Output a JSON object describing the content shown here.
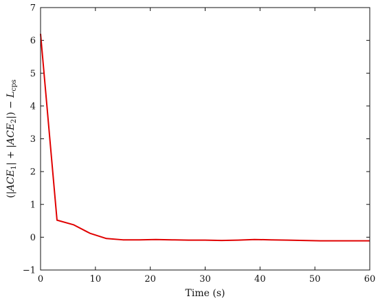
{
  "chart_data": {
    "type": "line",
    "xlabel": "Time (s)",
    "ylabel": "(|ACE1| + |ACE2|) − Lcps",
    "xlim": [
      0,
      60
    ],
    "ylim": [
      -1,
      7
    ],
    "xticks": [
      0,
      10,
      20,
      30,
      40,
      50,
      60
    ],
    "yticks": [
      -1,
      0,
      1,
      2,
      3,
      4,
      5,
      6,
      7
    ],
    "grid": false,
    "series": [
      {
        "color": "#e00000",
        "x": [
          0,
          3,
          6,
          9,
          12,
          15,
          18,
          21,
          24,
          27,
          30,
          33,
          36,
          39,
          42,
          45,
          48,
          51,
          54,
          57,
          60
        ],
        "y": [
          6.2,
          0.52,
          0.38,
          0.12,
          -0.04,
          -0.08,
          -0.08,
          -0.07,
          -0.08,
          -0.09,
          -0.09,
          -0.1,
          -0.09,
          -0.07,
          -0.08,
          -0.09,
          -0.1,
          -0.11,
          -0.11,
          -0.11,
          -0.11
        ]
      }
    ]
  }
}
